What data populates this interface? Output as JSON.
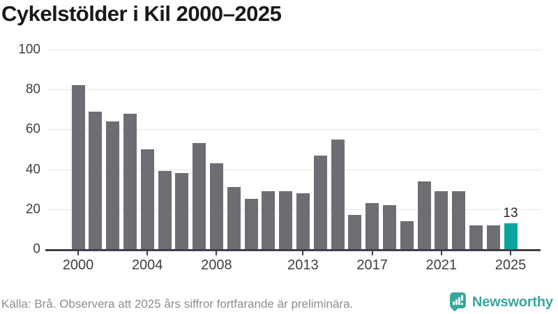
{
  "title": "Cykelstölder i Kil 2000–2025",
  "footer": {
    "source_note": "Källa: Brå. Observera att 2025 års siffror fortfarande är preliminära."
  },
  "logo": {
    "text": "Newsworthy"
  },
  "colors": {
    "bar": "#6d6d74",
    "highlight": "#0ba69b",
    "grid": "#e7e7e7",
    "axis": "#3f3f46",
    "tick_label": "#3d3d46",
    "title": "#191919",
    "footer": "#8d8d8d",
    "logo": "#3aa79d"
  },
  "chart_data": {
    "type": "bar",
    "title": "Cykelstölder i Kil 2000–2025",
    "x": [
      2000,
      2001,
      2002,
      2003,
      2004,
      2005,
      2006,
      2007,
      2008,
      2009,
      2010,
      2011,
      2012,
      2013,
      2014,
      2015,
      2016,
      2017,
      2018,
      2019,
      2020,
      2021,
      2022,
      2023,
      2024,
      2025
    ],
    "values": [
      82,
      69,
      64,
      68,
      50,
      39,
      38,
      53,
      43,
      31,
      25,
      29,
      29,
      28,
      47,
      55,
      17,
      23,
      22,
      14,
      34,
      29,
      29,
      12,
      12,
      13
    ],
    "xlabel": "",
    "ylabel": "",
    "ylim": [
      0,
      100
    ],
    "y_ticks": [
      0,
      20,
      40,
      60,
      80,
      100
    ],
    "x_ticks": [
      2000,
      2004,
      2008,
      2013,
      2017,
      2021,
      2025
    ],
    "grid": true,
    "legend": false,
    "bar_color": "#6d6d74",
    "highlight_index": 25,
    "highlight_color": "#0ba69b",
    "data_label": {
      "index": 25,
      "text": "13"
    }
  }
}
